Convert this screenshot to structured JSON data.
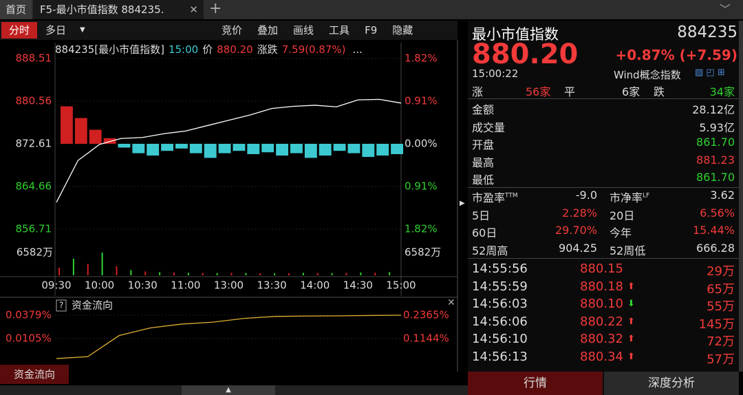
{
  "tabs": {
    "home": "首页",
    "active": "F5-最小市值指数 884235."
  },
  "toolbar": {
    "mode": "分时",
    "multi": "多日",
    "buttons": [
      "竞价",
      "叠加",
      "画线",
      "工具",
      "F9",
      "隐藏"
    ]
  },
  "chart": {
    "header": {
      "code_name": "884235[最小市值指数]",
      "time": "15:00",
      "price_label": "价",
      "price": "880.20",
      "change_label": "涨跌",
      "change": "7.59(0.87%)",
      "more": "..."
    },
    "ylim": [
      856.71,
      888.51
    ],
    "price_ticks": [
      888.51,
      880.56,
      872.61,
      864.66,
      856.71
    ],
    "pct_ticks": [
      {
        "value": 1.82,
        "label": "1.82%"
      },
      {
        "value": 0.91,
        "label": "0.91%"
      },
      {
        "value": 0,
        "label": "0.00%"
      },
      {
        "value": -0.91,
        "label": "0.91%"
      },
      {
        "value": -1.82,
        "label": "1.82%"
      }
    ],
    "volume_tick": {
      "value": 6582,
      "label": "6582万"
    },
    "times": [
      "09:30",
      "10:00",
      "10:30",
      "11:00",
      "13:00",
      "13:30",
      "14:00",
      "14:30",
      "15:00"
    ],
    "price": [
      861.7,
      869.5,
      872.5,
      873.6,
      873.8,
      874.5,
      875.0,
      876.0,
      877.0,
      878.0,
      879.2,
      879.6,
      879.8,
      879.5,
      880.8,
      880.9,
      880.2
    ],
    "breadth": [
      0.8,
      0.55,
      0.3,
      0.12,
      -0.08,
      -0.2,
      -0.25,
      -0.15,
      -0.1,
      -0.2,
      -0.3,
      -0.2,
      -0.15,
      -0.22,
      -0.18,
      -0.25,
      -0.2,
      -0.3,
      -0.25,
      -0.15,
      -0.2,
      -0.28,
      -0.25,
      -0.22
    ],
    "volume": [
      2200,
      4800,
      3300,
      6582,
      2600,
      1500,
      1100,
      900,
      800,
      700,
      650,
      600,
      700,
      650,
      600,
      550,
      600,
      700,
      650,
      600,
      700,
      800,
      750,
      900
    ]
  },
  "flow": {
    "title": "资金流向",
    "left_ticks": [
      {
        "value": 0.0379,
        "label": "0.0379%"
      },
      {
        "value": 0.0105,
        "label": "0.0105%"
      }
    ],
    "right_ticks": [
      {
        "value": 0.2365,
        "label": "0.2365%"
      },
      {
        "value": 0.1144,
        "label": "0.1144%"
      }
    ],
    "line": [
      0.01,
      0.02,
      0.13,
      0.17,
      0.19,
      0.2,
      0.22,
      0.23,
      0.232,
      0.233,
      0.235,
      0.2365
    ]
  },
  "bottom_tab": "资金流向",
  "quote": {
    "name": "最小市值指数",
    "code": "884235",
    "price": "880.20",
    "change": "+0.87% (+7.59)",
    "time": "15:00:22",
    "index_type": "Wind概念指数",
    "breadth": {
      "up_label": "涨",
      "up": "56家",
      "flat_label": "平",
      "flat": "6家",
      "down_label": "跌",
      "down": "34家"
    },
    "stats": [
      [
        "金额",
        "28.12亿"
      ],
      [
        "成交量",
        "5.93亿"
      ],
      [
        "开盘",
        "861.70"
      ],
      [
        "最高",
        "881.23"
      ],
      [
        "最低",
        "861.70"
      ]
    ],
    "ratios": [
      [
        {
          "label": "市盈率",
          "sup": "TTM"
        },
        "-9.0",
        {
          "label": "市净率",
          "sup": "LF"
        },
        "3.62"
      ],
      [
        {
          "label": "5日"
        },
        "2.28%",
        {
          "label": "20日"
        },
        "6.56%"
      ],
      [
        {
          "label": "60日"
        },
        "29.70%",
        {
          "label": "今年"
        },
        "15.44%"
      ],
      [
        {
          "label": "52周高"
        },
        "904.25",
        {
          "label": "52周低"
        },
        "666.28"
      ]
    ],
    "trades": [
      {
        "time": "14:55:56",
        "price": "880.15",
        "volume": "29万"
      },
      {
        "time": "14:55:59",
        "price": "880.18",
        "dir": "up",
        "volume": "65万"
      },
      {
        "time": "14:56:03",
        "price": "880.10",
        "dir": "down",
        "volume": "55万"
      },
      {
        "time": "14:56:06",
        "price": "880.22",
        "dir": "up",
        "volume": "145万"
      },
      {
        "time": "14:56:10",
        "price": "880.32",
        "dir": "up",
        "volume": "72万"
      },
      {
        "time": "14:56:13",
        "price": "880.34",
        "dir": "up",
        "volume": "57万"
      }
    ],
    "tabs": [
      "行情",
      "深度分析"
    ]
  }
}
